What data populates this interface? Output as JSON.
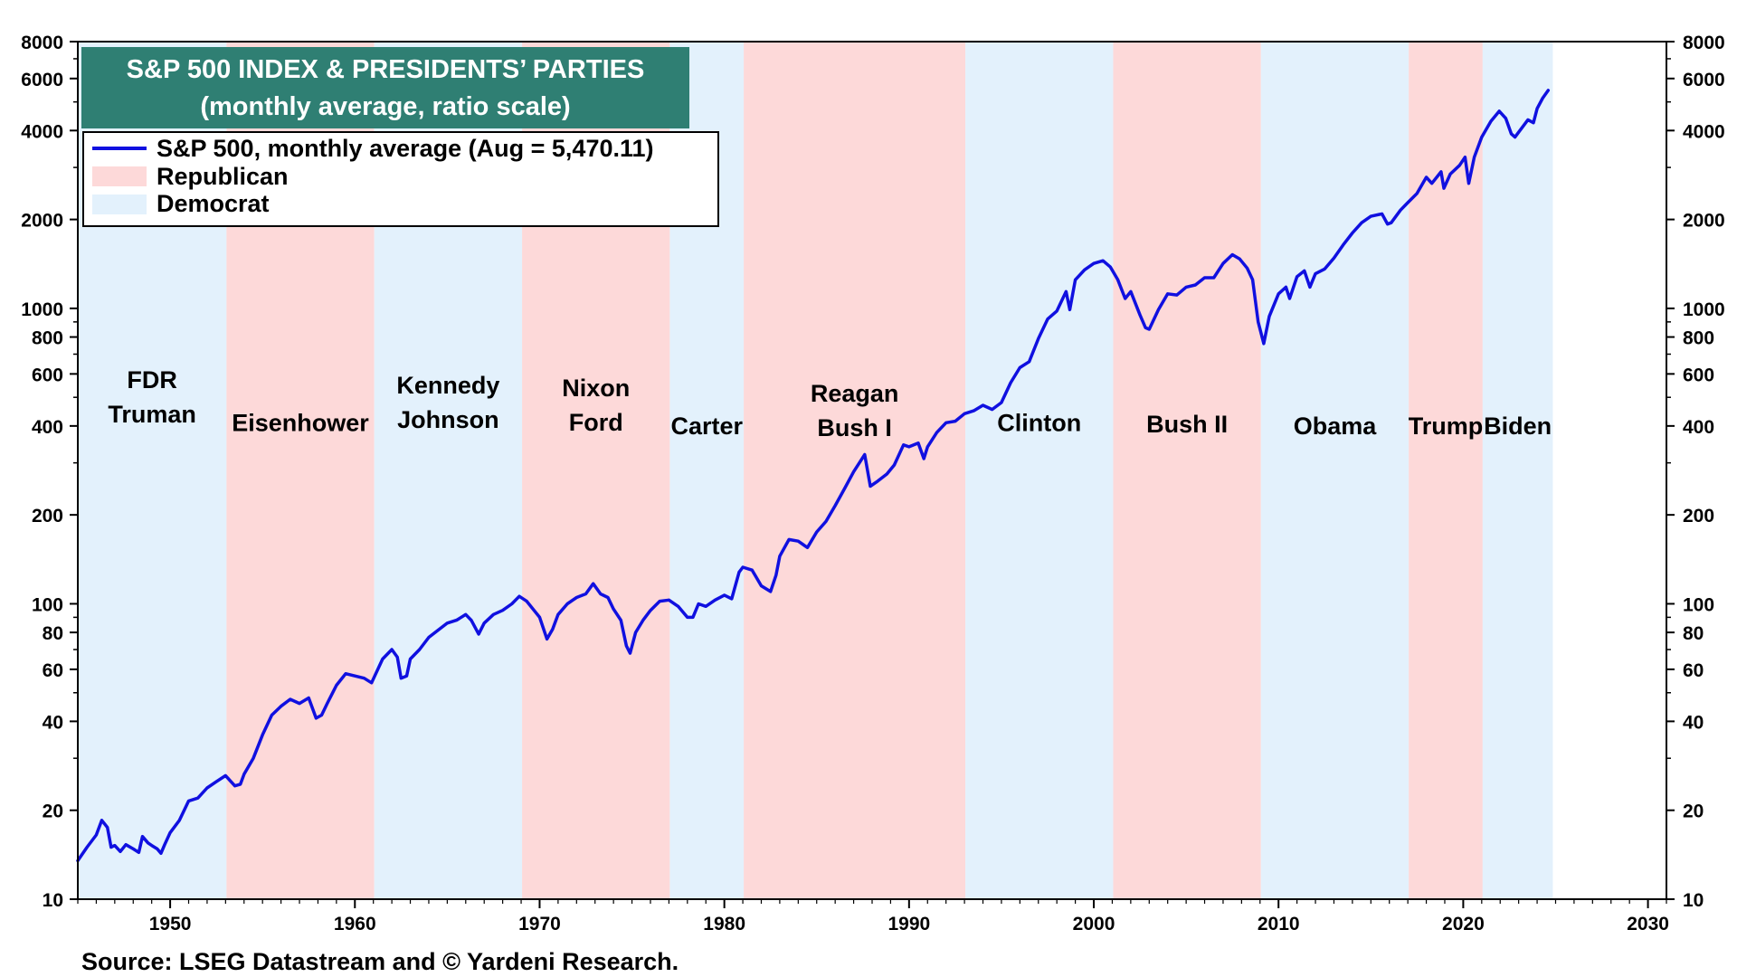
{
  "chart_data": {
    "type": "line",
    "title": "S&P 500 INDEX & PRESIDENTS’ PARTIES",
    "subtitle": "(monthly average, ratio scale)",
    "source": "Source: LSEG Datastream and © Yardeni Research.",
    "y_scale": "log",
    "xlim": [
      1945,
      2031
    ],
    "ylim": [
      10,
      8000
    ],
    "x_ticks": [
      1950,
      1960,
      1970,
      1980,
      1990,
      2000,
      2010,
      2020,
      2030
    ],
    "y_ticks": [
      10,
      20,
      40,
      60,
      80,
      100,
      200,
      400,
      600,
      800,
      1000,
      2000,
      4000,
      6000,
      8000
    ],
    "y_tick_labels": [
      "10",
      "20",
      "40",
      "60",
      "80",
      "100",
      "200",
      "400",
      "600",
      "800",
      "1000",
      "2000",
      "4000",
      "6000",
      "8000"
    ],
    "legend": {
      "placement": "top-left",
      "entries": [
        {
          "label": "S&P 500, monthly average (Aug = 5,470.11)",
          "color": "#1010e0",
          "kind": "line"
        },
        {
          "label": "Republican",
          "color": "#fdd9d9",
          "kind": "patch"
        },
        {
          "label": "Democrat",
          "color": "#e3f1fc",
          "kind": "patch"
        }
      ]
    },
    "colors": {
      "line": "#1010e0",
      "republican": "#fdd9d9",
      "democrat": "#e3f1fc",
      "title_bg": "#2f7f73"
    },
    "presidencies": [
      {
        "lines": [
          "FDR",
          "Truman"
        ],
        "start": 1945.0,
        "end": 1953.05,
        "party": "democrat",
        "label_y": 500
      },
      {
        "lines": [
          "Eisenhower"
        ],
        "start": 1953.05,
        "end": 1961.05,
        "party": "republican",
        "label_y": 410
      },
      {
        "lines": [
          "Kennedy",
          "Johnson"
        ],
        "start": 1961.05,
        "end": 1969.05,
        "party": "democrat",
        "label_y": 480
      },
      {
        "lines": [
          "Nixon",
          "Ford"
        ],
        "start": 1969.05,
        "end": 1977.05,
        "party": "republican",
        "label_y": 470
      },
      {
        "lines": [
          "Carter"
        ],
        "start": 1977.05,
        "end": 1981.05,
        "party": "democrat",
        "label_y": 400
      },
      {
        "lines": [
          "Reagan",
          "Bush I"
        ],
        "start": 1981.05,
        "end": 1993.05,
        "party": "republican",
        "label_y": 450
      },
      {
        "lines": [
          "Clinton"
        ],
        "start": 1993.05,
        "end": 2001.05,
        "party": "democrat",
        "label_y": 410
      },
      {
        "lines": [
          "Bush II"
        ],
        "start": 2001.05,
        "end": 2009.05,
        "party": "republican",
        "label_y": 405
      },
      {
        "lines": [
          "Obama"
        ],
        "start": 2009.05,
        "end": 2017.05,
        "party": "democrat",
        "label_y": 400
      },
      {
        "lines": [
          "Trump"
        ],
        "start": 2017.05,
        "end": 2021.05,
        "party": "republican",
        "label_y": 400
      },
      {
        "lines": [
          "Biden"
        ],
        "start": 2021.05,
        "end": 2024.85,
        "party": "democrat",
        "label_y": 400
      }
    ],
    "series": [
      {
        "name": "S&P 500, monthly average (Aug = 5,470.11)",
        "points": [
          [
            1945.0,
            13.5
          ],
          [
            1945.5,
            15
          ],
          [
            1946.0,
            16.5
          ],
          [
            1946.3,
            18.5
          ],
          [
            1946.6,
            17.5
          ],
          [
            1946.8,
            15
          ],
          [
            1947.0,
            15.2
          ],
          [
            1947.3,
            14.5
          ],
          [
            1947.6,
            15.3
          ],
          [
            1948.0,
            14.8
          ],
          [
            1948.3,
            14.4
          ],
          [
            1948.5,
            16.3
          ],
          [
            1948.8,
            15.5
          ],
          [
            1949.0,
            15.2
          ],
          [
            1949.3,
            14.8
          ],
          [
            1949.5,
            14.3
          ],
          [
            1949.7,
            15.3
          ],
          [
            1950.0,
            16.8
          ],
          [
            1950.5,
            18.5
          ],
          [
            1951.0,
            21.5
          ],
          [
            1951.5,
            22
          ],
          [
            1952.0,
            23.8
          ],
          [
            1952.5,
            25
          ],
          [
            1953.0,
            26.2
          ],
          [
            1953.5,
            24.2
          ],
          [
            1953.8,
            24.5
          ],
          [
            1954.0,
            26.5
          ],
          [
            1954.5,
            30
          ],
          [
            1955.0,
            36
          ],
          [
            1955.5,
            42
          ],
          [
            1956.0,
            45
          ],
          [
            1956.5,
            47.5
          ],
          [
            1957.0,
            46
          ],
          [
            1957.5,
            48
          ],
          [
            1957.9,
            41
          ],
          [
            1958.2,
            42
          ],
          [
            1958.5,
            46
          ],
          [
            1959.0,
            53
          ],
          [
            1959.5,
            58
          ],
          [
            1960.0,
            57
          ],
          [
            1960.5,
            56
          ],
          [
            1960.9,
            54
          ],
          [
            1961.5,
            65
          ],
          [
            1962.0,
            70
          ],
          [
            1962.3,
            66
          ],
          [
            1962.5,
            56
          ],
          [
            1962.8,
            57
          ],
          [
            1963.0,
            65
          ],
          [
            1963.5,
            70
          ],
          [
            1964.0,
            77
          ],
          [
            1965.0,
            86
          ],
          [
            1965.5,
            88
          ],
          [
            1966.0,
            92
          ],
          [
            1966.3,
            88
          ],
          [
            1966.7,
            79
          ],
          [
            1967.0,
            86
          ],
          [
            1967.5,
            92
          ],
          [
            1968.0,
            95
          ],
          [
            1968.5,
            100
          ],
          [
            1968.9,
            106
          ],
          [
            1969.3,
            102
          ],
          [
            1969.7,
            95
          ],
          [
            1970.0,
            90
          ],
          [
            1970.4,
            76
          ],
          [
            1970.7,
            82
          ],
          [
            1971.0,
            92
          ],
          [
            1971.5,
            100
          ],
          [
            1972.0,
            105
          ],
          [
            1972.5,
            108
          ],
          [
            1972.9,
            117
          ],
          [
            1973.3,
            108
          ],
          [
            1973.7,
            105
          ],
          [
            1974.0,
            96
          ],
          [
            1974.4,
            88
          ],
          [
            1974.7,
            72
          ],
          [
            1974.9,
            68
          ],
          [
            1975.2,
            80
          ],
          [
            1975.6,
            88
          ],
          [
            1976.0,
            95
          ],
          [
            1976.5,
            102
          ],
          [
            1977.0,
            103
          ],
          [
            1977.5,
            98
          ],
          [
            1978.0,
            90
          ],
          [
            1978.3,
            90
          ],
          [
            1978.6,
            100
          ],
          [
            1979.0,
            98
          ],
          [
            1979.5,
            103
          ],
          [
            1980.0,
            107
          ],
          [
            1980.4,
            104
          ],
          [
            1980.8,
            128
          ],
          [
            1981.0,
            133
          ],
          [
            1981.5,
            130
          ],
          [
            1982.0,
            115
          ],
          [
            1982.5,
            110
          ],
          [
            1982.8,
            125
          ],
          [
            1983.0,
            145
          ],
          [
            1983.5,
            165
          ],
          [
            1984.0,
            163
          ],
          [
            1984.5,
            155
          ],
          [
            1985.0,
            175
          ],
          [
            1985.5,
            190
          ],
          [
            1986.0,
            215
          ],
          [
            1986.5,
            245
          ],
          [
            1987.0,
            280
          ],
          [
            1987.6,
            320
          ],
          [
            1987.9,
            250
          ],
          [
            1988.3,
            260
          ],
          [
            1988.8,
            275
          ],
          [
            1989.2,
            295
          ],
          [
            1989.7,
            345
          ],
          [
            1990.0,
            340
          ],
          [
            1990.5,
            350
          ],
          [
            1990.8,
            310
          ],
          [
            1991.0,
            340
          ],
          [
            1991.5,
            380
          ],
          [
            1992.0,
            410
          ],
          [
            1992.5,
            415
          ],
          [
            1993.0,
            440
          ],
          [
            1993.5,
            450
          ],
          [
            1994.0,
            470
          ],
          [
            1994.5,
            455
          ],
          [
            1995.0,
            480
          ],
          [
            1995.5,
            560
          ],
          [
            1996.0,
            630
          ],
          [
            1996.5,
            660
          ],
          [
            1997.0,
            790
          ],
          [
            1997.5,
            920
          ],
          [
            1998.0,
            980
          ],
          [
            1998.5,
            1140
          ],
          [
            1998.7,
            990
          ],
          [
            1999.0,
            1250
          ],
          [
            1999.5,
            1350
          ],
          [
            2000.0,
            1420
          ],
          [
            2000.5,
            1450
          ],
          [
            2000.9,
            1380
          ],
          [
            2001.3,
            1250
          ],
          [
            2001.7,
            1080
          ],
          [
            2002.0,
            1140
          ],
          [
            2002.5,
            950
          ],
          [
            2002.8,
            860
          ],
          [
            2003.0,
            850
          ],
          [
            2003.5,
            990
          ],
          [
            2004.0,
            1120
          ],
          [
            2004.5,
            1110
          ],
          [
            2005.0,
            1180
          ],
          [
            2005.5,
            1200
          ],
          [
            2006.0,
            1270
          ],
          [
            2006.5,
            1270
          ],
          [
            2007.0,
            1420
          ],
          [
            2007.5,
            1520
          ],
          [
            2007.9,
            1470
          ],
          [
            2008.3,
            1370
          ],
          [
            2008.6,
            1250
          ],
          [
            2008.9,
            900
          ],
          [
            2009.2,
            760
          ],
          [
            2009.5,
            940
          ],
          [
            2010.0,
            1120
          ],
          [
            2010.4,
            1180
          ],
          [
            2010.6,
            1080
          ],
          [
            2011.0,
            1280
          ],
          [
            2011.4,
            1340
          ],
          [
            2011.7,
            1180
          ],
          [
            2012.0,
            1310
          ],
          [
            2012.5,
            1360
          ],
          [
            2013.0,
            1480
          ],
          [
            2013.5,
            1640
          ],
          [
            2014.0,
            1800
          ],
          [
            2014.5,
            1950
          ],
          [
            2015.0,
            2050
          ],
          [
            2015.6,
            2090
          ],
          [
            2015.9,
            1930
          ],
          [
            2016.1,
            1950
          ],
          [
            2016.6,
            2150
          ],
          [
            2017.0,
            2280
          ],
          [
            2017.5,
            2450
          ],
          [
            2018.0,
            2780
          ],
          [
            2018.3,
            2650
          ],
          [
            2018.8,
            2900
          ],
          [
            2018.95,
            2550
          ],
          [
            2019.3,
            2850
          ],
          [
            2019.8,
            3050
          ],
          [
            2020.1,
            3250
          ],
          [
            2020.3,
            2650
          ],
          [
            2020.6,
            3250
          ],
          [
            2021.0,
            3800
          ],
          [
            2021.5,
            4300
          ],
          [
            2021.95,
            4650
          ],
          [
            2022.3,
            4400
          ],
          [
            2022.6,
            3900
          ],
          [
            2022.8,
            3800
          ],
          [
            2023.0,
            3950
          ],
          [
            2023.5,
            4350
          ],
          [
            2023.8,
            4250
          ],
          [
            2024.0,
            4750
          ],
          [
            2024.3,
            5150
          ],
          [
            2024.6,
            5470
          ]
        ]
      }
    ]
  }
}
